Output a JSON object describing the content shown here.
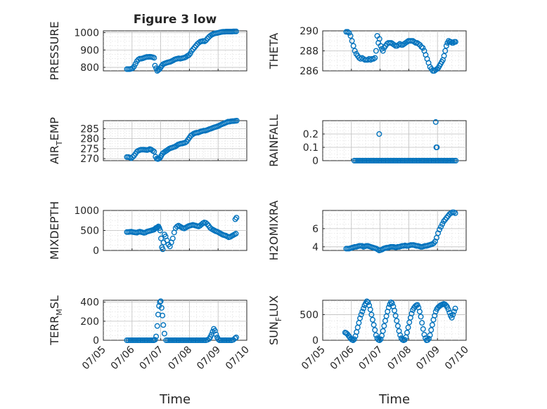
{
  "figure_title": "Figure 3 low",
  "xtick_labels": [
    "07/05",
    "07/06",
    "07/07",
    "07/08",
    "07/09",
    "07/10"
  ],
  "xlabel": "Time",
  "marker_color": "#0072BD",
  "chart_data": [
    {
      "type": "scatter",
      "title": "Figure 3 low",
      "ylabel": "PRESSURE",
      "ylim": [
        780,
        1010
      ],
      "yticks": [
        800,
        900,
        1000
      ],
      "xlim": [
        5,
        10
      ],
      "grid": true,
      "x": [
        5.82,
        5.87,
        5.92,
        5.97,
        6.02,
        6.07,
        6.12,
        6.17,
        6.22,
        6.27,
        6.32,
        6.37,
        6.42,
        6.47,
        6.52,
        6.57,
        6.62,
        6.67,
        6.72,
        6.77,
        6.8,
        6.84,
        6.88,
        6.92,
        6.96,
        7.0,
        7.04,
        7.08,
        7.13,
        7.18,
        7.23,
        7.28,
        7.33,
        7.38,
        7.43,
        7.48,
        7.53,
        7.58,
        7.63,
        7.68,
        7.73,
        7.78,
        7.83,
        7.88,
        7.93,
        7.98,
        8.03,
        8.08,
        8.13,
        8.18,
        8.23,
        8.28,
        8.33,
        8.38,
        8.43,
        8.48,
        8.53,
        8.58,
        8.63,
        8.68,
        8.73,
        8.78,
        8.83,
        8.88,
        8.93,
        8.98,
        9.03,
        9.08,
        9.13,
        9.18,
        9.23,
        9.28,
        9.33,
        9.38,
        9.43,
        9.48,
        9.53,
        9.58,
        9.63
      ],
      "y": [
        790,
        790,
        790,
        792,
        795,
        805,
        820,
        835,
        845,
        850,
        850,
        852,
        855,
        858,
        860,
        860,
        861,
        860,
        858,
        855,
        810,
        795,
        780,
        785,
        790,
        800,
        810,
        818,
        822,
        825,
        828,
        830,
        832,
        836,
        840,
        845,
        848,
        850,
        852,
        850,
        852,
        854,
        856,
        860,
        866,
        870,
        880,
        895,
        905,
        915,
        925,
        935,
        942,
        948,
        950,
        952,
        950,
        956,
        966,
        975,
        982,
        988,
        992,
        995,
        997,
        998,
        1000,
        1002,
        1004,
        1005,
        1005,
        1006,
        1006,
        1006,
        1006,
        1006,
        1007,
        1007,
        1007
      ]
    },
    {
      "type": "scatter",
      "ylabel": "THETA",
      "ylim": [
        286,
        290
      ],
      "yticks": [
        286,
        288,
        290
      ],
      "xlim": [
        5,
        10
      ],
      "grid": true,
      "x": [
        5.82,
        5.87,
        5.92,
        5.97,
        6.02,
        6.07,
        6.12,
        6.17,
        6.22,
        6.27,
        6.32,
        6.37,
        6.42,
        6.47,
        6.52,
        6.57,
        6.62,
        6.67,
        6.72,
        6.77,
        6.82,
        6.86,
        6.9,
        6.94,
        6.98,
        7.02,
        7.06,
        7.1,
        7.14,
        7.19,
        7.24,
        7.29,
        7.34,
        7.39,
        7.44,
        7.49,
        7.54,
        7.59,
        7.64,
        7.69,
        7.74,
        7.79,
        7.84,
        7.89,
        7.94,
        7.99,
        8.04,
        8.09,
        8.14,
        8.19,
        8.24,
        8.29,
        8.34,
        8.39,
        8.44,
        8.49,
        8.54,
        8.59,
        8.64,
        8.69,
        8.74,
        8.79,
        8.84,
        8.89,
        8.94,
        8.99,
        9.03,
        9.07,
        9.11,
        9.15,
        9.19,
        9.23,
        9.27,
        9.31,
        9.35,
        9.39,
        9.43,
        9.47,
        9.51,
        9.55,
        9.59,
        9.63
      ],
      "y": [
        289.9,
        289.9,
        289.8,
        289.5,
        289.0,
        288.5,
        288.0,
        287.7,
        287.5,
        287.3,
        287.2,
        287.3,
        287.2,
        287.1,
        287.1,
        287.1,
        287.2,
        287.1,
        287.2,
        287.2,
        287.3,
        288.0,
        289.5,
        288.8,
        289.2,
        288.5,
        288.2,
        288.0,
        288.3,
        288.5,
        288.7,
        288.8,
        288.8,
        288.8,
        288.7,
        288.6,
        288.5,
        288.5,
        288.6,
        288.7,
        288.6,
        288.6,
        288.7,
        288.8,
        288.9,
        289.0,
        289.0,
        289.0,
        289.0,
        288.9,
        288.8,
        288.8,
        288.7,
        288.6,
        288.4,
        288.3,
        288.0,
        287.6,
        287.2,
        286.8,
        286.4,
        286.2,
        286.0,
        286.0,
        286.1,
        286.2,
        286.3,
        286.5,
        286.7,
        286.9,
        287.1,
        287.5,
        288.0,
        288.5,
        288.8,
        289.0,
        288.9,
        288.9,
        288.8,
        288.8,
        288.9,
        288.9
      ]
    },
    {
      "type": "scatter",
      "ylabel": "AIR_TEMP",
      "ylim": [
        269,
        289
      ],
      "yticks": [
        270,
        275,
        280,
        285
      ],
      "xlim": [
        5,
        10
      ],
      "grid": true,
      "x": [
        5.82,
        5.87,
        5.92,
        5.97,
        6.02,
        6.07,
        6.12,
        6.17,
        6.22,
        6.27,
        6.32,
        6.37,
        6.42,
        6.47,
        6.52,
        6.57,
        6.62,
        6.67,
        6.72,
        6.77,
        6.82,
        6.86,
        6.9,
        6.94,
        6.98,
        7.02,
        7.06,
        7.1,
        7.15,
        7.2,
        7.25,
        7.3,
        7.35,
        7.4,
        7.45,
        7.5,
        7.55,
        7.6,
        7.65,
        7.7,
        7.75,
        7.8,
        7.85,
        7.9,
        7.95,
        8.0,
        8.05,
        8.1,
        8.15,
        8.2,
        8.25,
        8.3,
        8.35,
        8.4,
        8.45,
        8.5,
        8.55,
        8.6,
        8.65,
        8.7,
        8.75,
        8.8,
        8.85,
        8.9,
        8.95,
        9.0,
        9.05,
        9.1,
        9.15,
        9.2,
        9.25,
        9.3,
        9.35,
        9.4,
        9.45,
        9.5,
        9.55,
        9.6,
        9.65
      ],
      "y": [
        270.8,
        270.8,
        270.6,
        270.2,
        270.8,
        271.5,
        272.5,
        273.5,
        274.0,
        274.3,
        274.5,
        274.5,
        274.5,
        274.4,
        274.3,
        274.5,
        274.8,
        274.5,
        274.0,
        273.5,
        271.0,
        270.0,
        269.8,
        270.0,
        270.5,
        271.5,
        272.5,
        273.0,
        273.5,
        274.0,
        274.5,
        275.0,
        275.3,
        275.5,
        275.8,
        276.0,
        276.5,
        277.0,
        277.3,
        277.5,
        277.6,
        277.8,
        278.0,
        278.5,
        279.5,
        280.5,
        281.5,
        282.0,
        282.5,
        282.8,
        283.0,
        283.0,
        283.3,
        283.6,
        283.8,
        284.0,
        284.0,
        284.2,
        284.5,
        284.8,
        285.0,
        285.3,
        285.6,
        285.8,
        286.0,
        286.3,
        286.6,
        287.0,
        287.3,
        287.6,
        287.9,
        288.2,
        288.5,
        288.5,
        288.7,
        288.8,
        288.8,
        288.9,
        289.0
      ]
    },
    {
      "type": "scatter",
      "ylabel": "RAINFALL",
      "ylim": [
        0,
        0.3
      ],
      "yticks": [
        0,
        0.1,
        0.2
      ],
      "xlim": [
        5,
        10
      ],
      "grid": true,
      "x": [
        6.1,
        6.16,
        6.22,
        6.28,
        6.34,
        6.4,
        6.46,
        6.52,
        6.58,
        6.64,
        6.7,
        6.76,
        6.82,
        6.88,
        6.94,
        7.0,
        7.06,
        7.12,
        7.18,
        7.24,
        7.3,
        7.36,
        7.42,
        7.48,
        7.54,
        7.6,
        7.66,
        7.72,
        7.78,
        7.84,
        7.9,
        7.96,
        8.02,
        8.08,
        8.14,
        8.2,
        8.26,
        8.32,
        8.38,
        8.44,
        8.5,
        8.56,
        8.62,
        8.68,
        8.74,
        8.8,
        8.86,
        8.92,
        8.98,
        9.04,
        9.1,
        9.16,
        9.22,
        9.28,
        9.34,
        9.4,
        9.46,
        9.52,
        9.58,
        9.64,
        6.97,
        8.94,
        8.96,
        8.98
      ],
      "y": [
        0,
        0,
        0,
        0,
        0,
        0,
        0,
        0,
        0,
        0,
        0,
        0,
        0,
        0,
        0,
        0,
        0,
        0,
        0,
        0,
        0,
        0,
        0,
        0,
        0,
        0,
        0,
        0,
        0,
        0,
        0,
        0,
        0,
        0,
        0,
        0,
        0,
        0,
        0,
        0,
        0,
        0,
        0,
        0,
        0,
        0,
        0,
        0,
        0,
        0,
        0,
        0,
        0,
        0,
        0,
        0,
        0,
        0,
        0,
        0,
        0.2,
        0.29,
        0.1,
        0.1
      ]
    },
    {
      "type": "scatter",
      "ylabel": "MIXDEPTH",
      "ylim": [
        0,
        1000
      ],
      "yticks": [
        0,
        500,
        1000
      ],
      "xlim": [
        5,
        10
      ],
      "grid": true,
      "x": [
        5.82,
        5.87,
        5.92,
        5.97,
        6.02,
        6.07,
        6.12,
        6.17,
        6.22,
        6.27,
        6.32,
        6.37,
        6.42,
        6.47,
        6.52,
        6.57,
        6.62,
        6.67,
        6.72,
        6.76,
        6.8,
        6.83,
        6.86,
        6.89,
        6.92,
        6.95,
        6.98,
        7.01,
        7.04,
        7.07,
        7.1,
        7.13,
        7.17,
        7.22,
        7.27,
        7.32,
        7.37,
        7.42,
        7.47,
        7.52,
        7.57,
        7.62,
        7.67,
        7.72,
        7.77,
        7.82,
        7.87,
        7.92,
        7.97,
        8.02,
        8.07,
        8.12,
        8.17,
        8.22,
        8.27,
        8.32,
        8.37,
        8.42,
        8.47,
        8.52,
        8.57,
        8.62,
        8.67,
        8.72,
        8.77,
        8.82,
        8.87,
        8.92,
        8.97,
        9.02,
        9.07,
        9.12,
        9.17,
        9.22,
        9.27,
        9.32,
        9.37,
        9.42,
        9.47,
        9.52,
        9.57,
        9.62,
        9.6,
        9.64
      ],
      "y": [
        460,
        460,
        465,
        470,
        460,
        455,
        450,
        445,
        460,
        470,
        460,
        450,
        440,
        450,
        470,
        480,
        490,
        500,
        510,
        520,
        540,
        560,
        570,
        580,
        600,
        560,
        500,
        300,
        80,
        30,
        200,
        400,
        350,
        250,
        150,
        100,
        200,
        300,
        450,
        560,
        600,
        620,
        600,
        580,
        560,
        550,
        570,
        590,
        610,
        620,
        630,
        640,
        630,
        620,
        610,
        600,
        620,
        650,
        680,
        700,
        690,
        660,
        620,
        570,
        540,
        520,
        500,
        480,
        470,
        450,
        430,
        410,
        390,
        380,
        370,
        350,
        330,
        340,
        360,
        380,
        400,
        420,
        780,
        820
      ]
    },
    {
      "type": "scatter",
      "ylabel": "H2OMIXRA",
      "ylim": [
        3.6,
        8.0
      ],
      "yticks": [
        4,
        6
      ],
      "xlim": [
        5,
        10
      ],
      "grid": true,
      "x": [
        5.82,
        5.87,
        5.92,
        5.97,
        6.02,
        6.07,
        6.12,
        6.17,
        6.22,
        6.27,
        6.32,
        6.37,
        6.42,
        6.47,
        6.52,
        6.57,
        6.62,
        6.67,
        6.72,
        6.77,
        6.82,
        6.87,
        6.92,
        6.97,
        7.02,
        7.07,
        7.12,
        7.17,
        7.22,
        7.27,
        7.32,
        7.37,
        7.42,
        7.47,
        7.52,
        7.57,
        7.62,
        7.67,
        7.72,
        7.77,
        7.82,
        7.87,
        7.92,
        7.97,
        8.02,
        8.07,
        8.12,
        8.17,
        8.22,
        8.27,
        8.32,
        8.37,
        8.42,
        8.47,
        8.52,
        8.57,
        8.62,
        8.67,
        8.72,
        8.77,
        8.82,
        8.87,
        8.92,
        8.97,
        9.02,
        9.07,
        9.12,
        9.17,
        9.22,
        9.27,
        9.32,
        9.37,
        9.42,
        9.47,
        9.52,
        9.57,
        9.62
      ],
      "y": [
        3.8,
        3.8,
        3.8,
        3.85,
        3.9,
        3.95,
        4.0,
        4.0,
        4.05,
        4.1,
        4.1,
        4.1,
        4.0,
        4.05,
        4.1,
        4.1,
        4.05,
        4.0,
        3.95,
        3.9,
        3.85,
        3.8,
        3.7,
        3.6,
        3.65,
        3.7,
        3.8,
        3.85,
        3.9,
        3.9,
        3.95,
        4.0,
        4.0,
        4.0,
        3.95,
        3.95,
        4.0,
        4.0,
        4.05,
        4.1,
        4.1,
        4.15,
        4.1,
        4.1,
        4.15,
        4.2,
        4.2,
        4.2,
        4.15,
        4.1,
        4.1,
        4.05,
        4.0,
        4.0,
        4.05,
        4.1,
        4.1,
        4.15,
        4.2,
        4.25,
        4.3,
        4.4,
        4.6,
        5.0,
        5.5,
        5.9,
        6.2,
        6.5,
        6.8,
        7.0,
        7.2,
        7.4,
        7.6,
        7.7,
        7.8,
        7.8,
        7.7
      ]
    },
    {
      "type": "scatter",
      "ylabel": "TERR_MSL",
      "ylim": [
        0,
        420
      ],
      "yticks": [
        0,
        200,
        400
      ],
      "xlim": [
        5,
        10
      ],
      "grid": true,
      "x": [
        5.82,
        5.88,
        5.94,
        6.0,
        6.06,
        6.12,
        6.18,
        6.24,
        6.3,
        6.36,
        6.42,
        6.48,
        6.54,
        6.6,
        6.66,
        6.72,
        6.76,
        6.8,
        6.84,
        6.88,
        6.91,
        6.94,
        6.97,
        7.0,
        7.03,
        7.06,
        7.09,
        7.13,
        7.19,
        7.25,
        7.31,
        7.37,
        7.43,
        7.49,
        7.55,
        7.61,
        7.67,
        7.73,
        7.79,
        7.85,
        7.91,
        7.97,
        8.03,
        8.09,
        8.15,
        8.21,
        8.27,
        8.33,
        8.39,
        8.45,
        8.51,
        8.57,
        8.63,
        8.69,
        8.73,
        8.77,
        8.81,
        8.85,
        8.89,
        8.93,
        8.97,
        9.01,
        9.05,
        9.11,
        9.17,
        9.23,
        9.29,
        9.35,
        9.41,
        9.47,
        9.53,
        9.59,
        9.63
      ],
      "y": [
        0,
        0,
        0,
        0,
        0,
        0,
        0,
        0,
        0,
        0,
        0,
        0,
        0,
        0,
        0,
        0,
        0,
        5,
        40,
        150,
        270,
        360,
        400,
        410,
        340,
        260,
        160,
        70,
        0,
        0,
        0,
        0,
        0,
        0,
        0,
        0,
        0,
        0,
        0,
        0,
        0,
        0,
        0,
        0,
        0,
        0,
        0,
        0,
        0,
        0,
        0,
        0,
        5,
        15,
        35,
        60,
        90,
        120,
        100,
        60,
        30,
        10,
        0,
        0,
        0,
        0,
        0,
        0,
        0,
        0,
        5,
        20,
        30
      ]
    },
    {
      "type": "scatter",
      "ylabel": "SUN_FLUX",
      "ylim": [
        0,
        780
      ],
      "yticks": [
        0,
        500
      ],
      "xlim": [
        5,
        10
      ],
      "grid": true,
      "x": [
        5.78,
        5.82,
        5.86,
        5.9,
        5.94,
        5.98,
        6.02,
        6.06,
        6.1,
        6.14,
        6.18,
        6.22,
        6.26,
        6.3,
        6.34,
        6.38,
        6.42,
        6.46,
        6.5,
        6.54,
        6.58,
        6.62,
        6.66,
        6.7,
        6.74,
        6.78,
        6.82,
        6.86,
        6.9,
        6.94,
        6.98,
        7.02,
        7.06,
        7.1,
        7.14,
        7.18,
        7.22,
        7.26,
        7.3,
        7.34,
        7.38,
        7.42,
        7.46,
        7.5,
        7.54,
        7.58,
        7.62,
        7.66,
        7.7,
        7.74,
        7.78,
        7.82,
        7.86,
        7.9,
        7.94,
        7.98,
        8.02,
        8.06,
        8.1,
        8.14,
        8.18,
        8.22,
        8.26,
        8.3,
        8.34,
        8.38,
        8.42,
        8.46,
        8.5,
        8.54,
        8.58,
        8.62,
        8.66,
        8.7,
        8.74,
        8.78,
        8.82,
        8.86,
        8.9,
        8.94,
        8.98,
        9.02,
        9.06,
        9.1,
        9.14,
        9.18,
        9.22,
        9.26,
        9.3,
        9.34,
        9.38,
        9.42,
        9.46,
        9.5,
        9.54,
        9.58,
        9.62
      ],
      "y": [
        150,
        140,
        120,
        90,
        60,
        30,
        10,
        0,
        20,
        80,
        160,
        250,
        340,
        430,
        500,
        560,
        620,
        680,
        720,
        760,
        740,
        680,
        600,
        500,
        400,
        300,
        200,
        100,
        40,
        10,
        0,
        20,
        90,
        180,
        280,
        380,
        470,
        560,
        640,
        700,
        740,
        720,
        660,
        580,
        480,
        380,
        280,
        180,
        100,
        40,
        10,
        0,
        10,
        60,
        150,
        250,
        350,
        440,
        520,
        590,
        630,
        660,
        680,
        690,
        640,
        560,
        460,
        340,
        220,
        110,
        40,
        0,
        5,
        30,
        100,
        200,
        300,
        400,
        480,
        560,
        610,
        640,
        660,
        680,
        690,
        700,
        710,
        700,
        680,
        650,
        600,
        540,
        480,
        440,
        500,
        560,
        620
      ]
    }
  ]
}
